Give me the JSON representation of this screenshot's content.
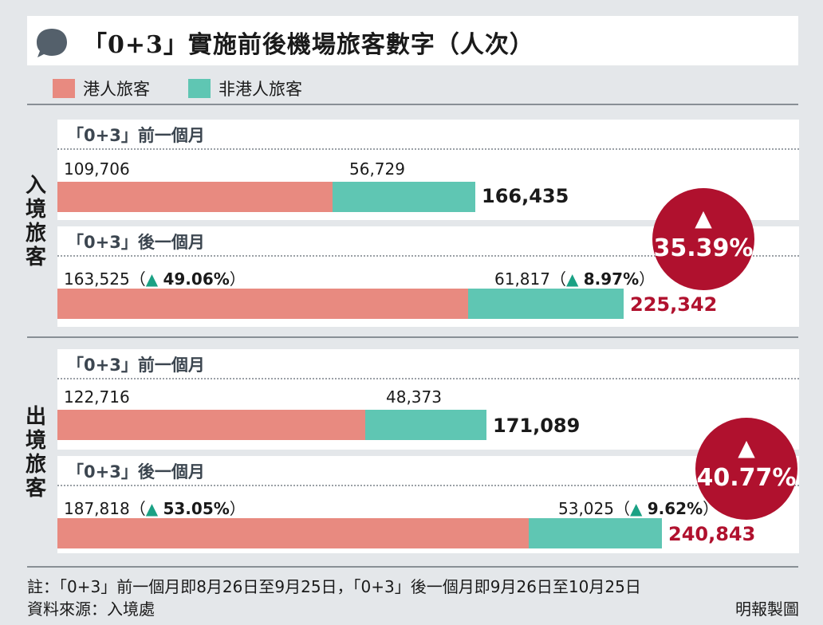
{
  "title": "「0+3」實施前後機場旅客數字（人次）",
  "legend": [
    {
      "label": "港人旅客",
      "color": "#e88a80"
    },
    {
      "label": "非港人旅客",
      "color": "#5fc6b3"
    }
  ],
  "colors": {
    "hk": "#e88a80",
    "nonhk": "#5fc6b3",
    "accent": "#b0112e",
    "increase": "#1aa184"
  },
  "chart_data": [
    {
      "type": "bar",
      "section": "入境旅客",
      "series_names": [
        "港人旅客",
        "非港人旅客"
      ],
      "groups": [
        {
          "label": "「0+3」前一個月",
          "hk": 109706,
          "hk_text": "109,706",
          "nonhk": 56729,
          "nonhk_text": "56,729",
          "total": 166435,
          "total_text": "166,435",
          "hk_change": "",
          "nonhk_change": ""
        },
        {
          "label": "「0+3」後一個月",
          "hk": 163525,
          "hk_text": "163,525",
          "nonhk": 61817,
          "nonhk_text": "61,817",
          "total": 225342,
          "total_text": "225,342",
          "hk_change": "49.06%",
          "nonhk_change": "8.97%"
        }
      ],
      "total_change": "35.39%"
    },
    {
      "type": "bar",
      "section": "出境旅客",
      "series_names": [
        "港人旅客",
        "非港人旅客"
      ],
      "groups": [
        {
          "label": "「0+3」前一個月",
          "hk": 122716,
          "hk_text": "122,716",
          "nonhk": 48373,
          "nonhk_text": "48,373",
          "total": 171089,
          "total_text": "171,089",
          "hk_change": "",
          "nonhk_change": ""
        },
        {
          "label": "「0+3」後一個月",
          "hk": 187818,
          "hk_text": "187,818",
          "nonhk": 53025,
          "nonhk_text": "53,025",
          "total": 240843,
          "total_text": "240,843",
          "hk_change": "53.05%",
          "nonhk_change": "9.62%"
        }
      ],
      "total_change": "40.77%"
    }
  ],
  "sections": {
    "inbound_label": "入\n境\n旅\n客",
    "outbound_label": "出\n境\n旅\n客"
  },
  "glyphs": {
    "up": "▲",
    "open": "（",
    "close": "）"
  },
  "footer": {
    "note": "註：「0+3」前一個月即8月26日至9月25日，「0+3」後一個月即9月26日至10月25日",
    "source": "資料來源：入境處",
    "credit": "明報製圖"
  }
}
